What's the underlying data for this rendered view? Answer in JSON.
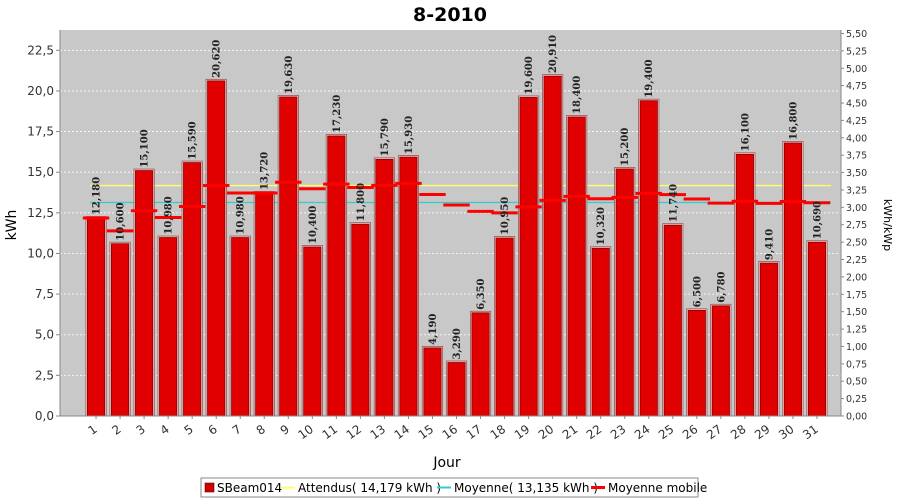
{
  "chart_data": {
    "type": "bar",
    "title": "8-2010",
    "xlabel": "Jour",
    "ylabel": "kWh",
    "y2label": "kWh/kWp",
    "ylim": [
      0,
      23.75
    ],
    "y2lim": [
      0,
      5.55
    ],
    "yticks": [
      "0,0",
      "2,5",
      "5,0",
      "7,5",
      "10,0",
      "12,5",
      "15,0",
      "17,5",
      "20,0",
      "22,5"
    ],
    "y2ticks": [
      "0,00",
      "0,25",
      "0,50",
      "0,75",
      "1,00",
      "1,25",
      "1,50",
      "1,75",
      "2,00",
      "2,25",
      "2,50",
      "2,75",
      "3,00",
      "3,25",
      "3,50",
      "3,75",
      "4,00",
      "4,25",
      "4,50",
      "4,75",
      "5,00",
      "5,25",
      "5,50"
    ],
    "categories": [
      "1",
      "2",
      "3",
      "4",
      "5",
      "6",
      "7",
      "8",
      "9",
      "10",
      "11",
      "12",
      "13",
      "14",
      "15",
      "16",
      "17",
      "18",
      "19",
      "20",
      "21",
      "22",
      "23",
      "24",
      "25",
      "26",
      "27",
      "28",
      "29",
      "30",
      "31"
    ],
    "series": [
      {
        "name": "SBeam014",
        "type": "bar",
        "color": "#e00000",
        "values": [
          12.18,
          10.6,
          15.1,
          10.98,
          15.59,
          20.62,
          10.98,
          13.72,
          19.63,
          10.4,
          17.23,
          11.8,
          15.79,
          15.93,
          4.19,
          3.29,
          6.35,
          10.95,
          19.6,
          20.91,
          18.4,
          10.32,
          15.2,
          19.4,
          11.74,
          6.5,
          6.78,
          16.1,
          9.41,
          16.8,
          10.69
        ],
        "labels": [
          "12,180",
          "10,600",
          "15,100",
          "10,980",
          "15,590",
          "20,620",
          "10,980",
          "13,720",
          "19,630",
          "10,400",
          "17,230",
          "11,800",
          "15,790",
          "15,930",
          "4,190",
          "3,290",
          "6,350",
          "10,950",
          "19,600",
          "20,910",
          "18,400",
          "10,320",
          "15,200",
          "19,400",
          "11,740",
          "6,500",
          "6,780",
          "16,100",
          "9,410",
          "16,800",
          "10,690"
        ]
      },
      {
        "name": "Attendus( 14,179 kWh )",
        "type": "hline",
        "color": "#ffff66",
        "value": 14.179
      },
      {
        "name": "Moyenne( 13,135 kWh )",
        "type": "hline",
        "color": "#33cccc",
        "value": 13.135
      },
      {
        "name": "Moyenne mobile",
        "type": "step",
        "color": "#ff0000",
        "values": [
          12.18,
          11.39,
          12.63,
          12.21,
          12.89,
          14.18,
          13.72,
          13.72,
          14.38,
          13.98,
          14.27,
          14.06,
          14.19,
          14.31,
          13.63,
          12.98,
          12.59,
          12.5,
          12.87,
          13.27,
          13.51,
          13.37,
          13.45,
          13.7,
          13.62,
          13.35,
          13.1,
          13.21,
          13.08,
          13.2,
          13.12
        ]
      }
    ],
    "grid": true,
    "legend": "bottom"
  }
}
